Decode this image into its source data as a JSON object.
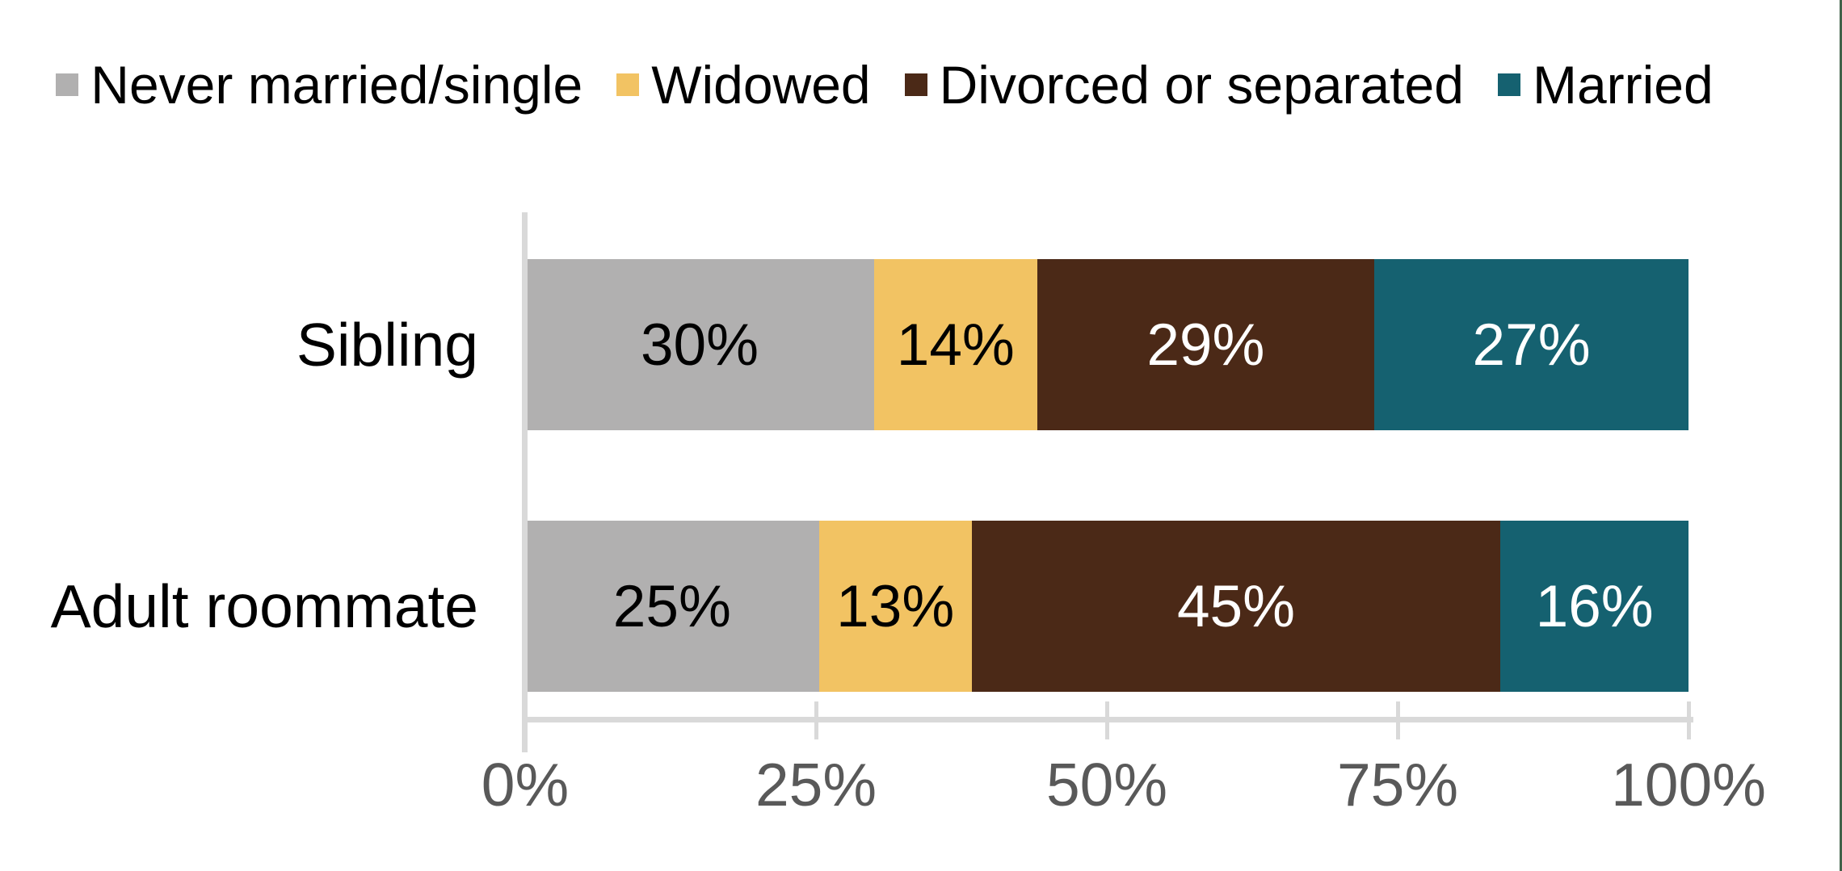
{
  "chart_data": {
    "type": "bar",
    "orientation": "horizontal",
    "stacked": true,
    "normalized_100pct": true,
    "title": "",
    "categories": [
      "Sibling",
      "Adult roommate"
    ],
    "series": [
      {
        "name": "Never married/single",
        "color": "#b1b0b0",
        "label_color": "#000000",
        "values": [
          30,
          25
        ],
        "labels": [
          "30%",
          "25%"
        ]
      },
      {
        "name": "Widowed",
        "color": "#f2c363",
        "label_color": "#000000",
        "values": [
          14,
          13
        ],
        "labels": [
          "14%",
          "13%"
        ]
      },
      {
        "name": "Divorced or separated",
        "color": "#4b2917",
        "label_color": "#ffffff",
        "values": [
          29,
          45
        ],
        "labels": [
          "29%",
          "45%"
        ]
      },
      {
        "name": "Married",
        "color": "#156170",
        "label_color": "#ffffff",
        "values": [
          27,
          16
        ],
        "labels": [
          "27%",
          "16%"
        ]
      }
    ],
    "x_axis": {
      "ticks": [
        "0%",
        "25%",
        "50%",
        "75%",
        "100%"
      ],
      "min": 0,
      "max": 100,
      "line_color": "#d9d9d9",
      "tick_label_color": "#595959"
    },
    "legend": {
      "position": "top",
      "text_color": "#000000"
    },
    "grid": false
  },
  "decorations": {
    "right_edge_line_color": "#41624a"
  }
}
